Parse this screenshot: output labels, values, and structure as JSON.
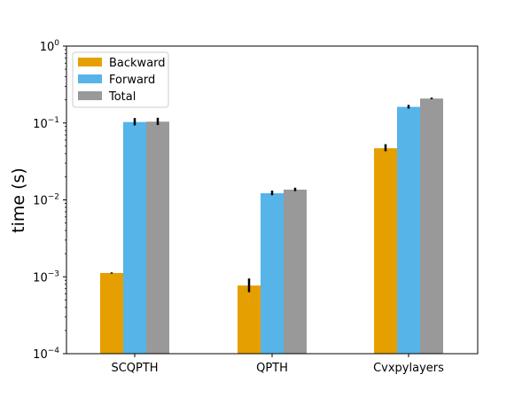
{
  "chart_data": {
    "type": "bar",
    "title": "",
    "xlabel": "",
    "ylabel": "time (s)",
    "yscale": "log",
    "ylim": [
      0.0001,
      1
    ],
    "yticks": [
      {
        "value": 0.0001,
        "base": "10",
        "exp": "−4"
      },
      {
        "value": 0.001,
        "base": "10",
        "exp": "−3"
      },
      {
        "value": 0.01,
        "base": "10",
        "exp": "−2"
      },
      {
        "value": 0.1,
        "base": "10",
        "exp": "−1"
      },
      {
        "value": 1,
        "base": "10",
        "exp": "0"
      }
    ],
    "categories": [
      "SCQPTH",
      "QPTH",
      "Cvxpylayers"
    ],
    "series": [
      {
        "name": "Backward",
        "color": "#e69f00",
        "values": [
          0.00112,
          0.00077,
          0.047
        ],
        "err_low": [
          0.0011,
          0.00063,
          0.043
        ],
        "err_high": [
          0.00114,
          0.00095,
          0.053
        ]
      },
      {
        "name": "Forward",
        "color": "#56b4e9",
        "values": [
          0.103,
          0.0122,
          0.162
        ],
        "err_low": [
          0.093,
          0.0115,
          0.154
        ],
        "err_high": [
          0.116,
          0.0132,
          0.172
        ]
      },
      {
        "name": "Total",
        "color": "#999999",
        "values": [
          0.104,
          0.0136,
          0.208
        ],
        "err_low": [
          0.094,
          0.013,
          0.204
        ],
        "err_high": [
          0.117,
          0.0144,
          0.214
        ]
      }
    ],
    "legend_position": "top-left",
    "grid": false
  }
}
